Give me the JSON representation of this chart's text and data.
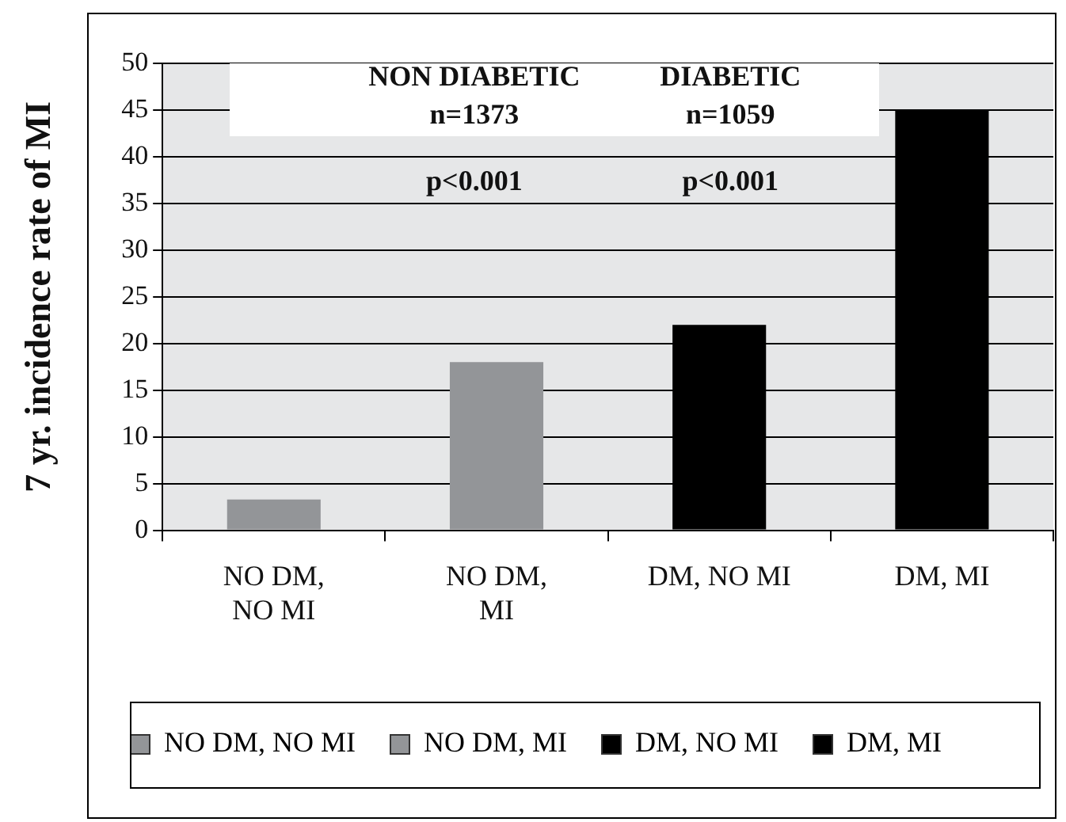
{
  "chart_data": {
    "type": "bar",
    "ylabel": "7 yr. incidence rate of MI",
    "categories": [
      "NO DM,\nNO MI",
      "NO DM,\nMI",
      "DM, NO MI",
      "DM, MI"
    ],
    "series": [
      {
        "name": "NO DM, NO MI",
        "color": "#939598",
        "values": [
          3.3,
          null,
          null,
          null
        ]
      },
      {
        "name": "NO DM, MI",
        "color": "#939598",
        "values": [
          null,
          18,
          null,
          null
        ]
      },
      {
        "name": "DM, NO MI",
        "color": "#000000",
        "values": [
          null,
          null,
          22,
          null
        ]
      },
      {
        "name": "DM, MI",
        "color": "#000000",
        "values": [
          null,
          null,
          null,
          45
        ]
      }
    ],
    "ylim": [
      0,
      50
    ],
    "yticks": [
      0,
      5,
      10,
      15,
      20,
      25,
      30,
      35,
      40,
      45,
      50
    ],
    "grid": "y",
    "legend": "bottom",
    "annotations": [
      "NON DIABETIC",
      "DIABETIC",
      "n=1373",
      "n=1059",
      "p<0.001",
      "p<0.001"
    ]
  }
}
